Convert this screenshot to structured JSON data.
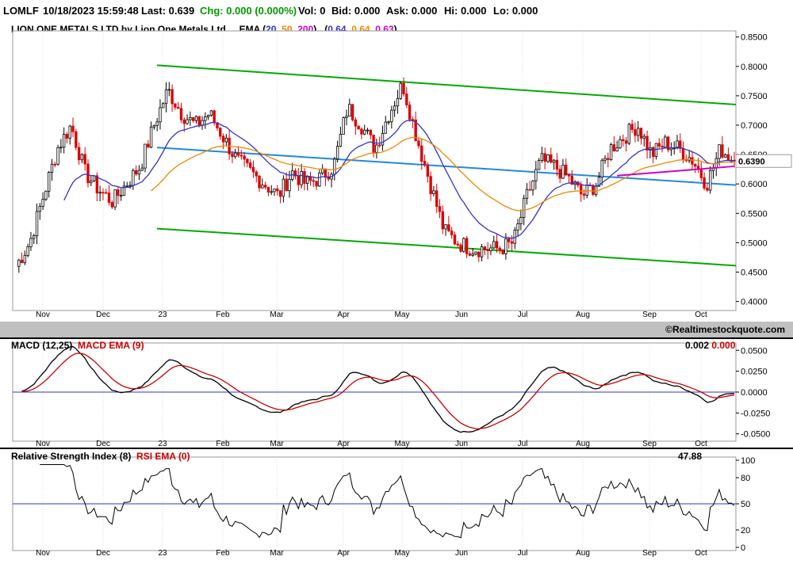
{
  "header": {
    "symbol": "LOMLF",
    "datetime": "10/18/2023 15:59:48",
    "last": "Last: 0.639",
    "chg": "Chg: 0.000 (0.000%)",
    "vol": "Vol: 0",
    "bid": "Bid: 0.000",
    "ask": "Ask: 0.000",
    "hi": "Hi: 0.000",
    "lo": "Lo: 0.000"
  },
  "price_panel": {
    "title": "LION ONE METALS LTD by Lion One Metals Ltd.",
    "ema_label": "EMA (",
    "ema_periods": [
      "20",
      "50",
      "200"
    ],
    "ema_values": [
      "0.64",
      "0.64",
      "0.63"
    ],
    "last_price_tag": "0.6390"
  },
  "watermark": "©Realtimestockquote.com",
  "macd_panel": {
    "label": "MACD (12,25)",
    "signal_label": "MACD EMA (9)",
    "value_macd": "0.002",
    "value_signal": "0.000"
  },
  "rsi_panel": {
    "label": "Relative Strength Index (8)",
    "ema_label": "RSI EMA (0)",
    "value": "47.88"
  },
  "colors": {
    "bull": "#000000",
    "bear": "#dd0000",
    "ema20": "#3333cc",
    "ema50": "#ee8800",
    "ema200": "#cc00cc",
    "channel": "#00aa00",
    "regression": "#2288dd",
    "macd_signal": "#cc0000"
  },
  "chart_data": [
    {
      "type": "candlestick",
      "x_ticks": [
        "Nov",
        "Dec",
        "23",
        "Feb",
        "Mar",
        "Apr",
        "May",
        "Jun",
        "Jul",
        "Aug",
        "Sep",
        "Oct"
      ],
      "y_ticks": [
        "0.8500",
        "0.8000",
        "0.7500",
        "0.7000",
        "0.6500",
        "0.6000",
        "0.5500",
        "0.5000",
        "0.4500",
        "0.4000"
      ],
      "ylim": [
        0.39,
        0.855
      ],
      "close_series_by_week": [
        0.46,
        0.5,
        0.58,
        0.66,
        0.7,
        0.62,
        0.59,
        0.57,
        0.6,
        0.63,
        0.7,
        0.76,
        0.72,
        0.7,
        0.72,
        0.68,
        0.64,
        0.62,
        0.6,
        0.58,
        0.62,
        0.6,
        0.61,
        0.63,
        0.73,
        0.7,
        0.66,
        0.72,
        0.77,
        0.68,
        0.6,
        0.52,
        0.5,
        0.49,
        0.49,
        0.49,
        0.5,
        0.58,
        0.64,
        0.63,
        0.61,
        0.58,
        0.6,
        0.66,
        0.68,
        0.7,
        0.65,
        0.67,
        0.66,
        0.64,
        0.6,
        0.66,
        0.639
      ],
      "ema20_last": 0.64,
      "ema50_last": 0.64,
      "ema200_last": 0.63,
      "channel_upper": [
        0.802,
        0.735
      ],
      "channel_lower": [
        0.524,
        0.461
      ],
      "regression_line": [
        0.662,
        0.598
      ]
    },
    {
      "type": "line",
      "name": "MACD (12,25)",
      "y_ticks": [
        "0.0500",
        "0.0250",
        "0.0000",
        "-0.0250",
        "-0.0500"
      ],
      "ylim": [
        -0.055,
        0.055
      ],
      "macd_last": 0.002,
      "signal_last": 0.0
    },
    {
      "type": "line",
      "name": "Relative Strength Index (8)",
      "y_ticks": [
        "100",
        "80",
        "50",
        "20",
        "0"
      ],
      "ylim": [
        0,
        100
      ],
      "rsi_last": 47.88
    }
  ]
}
